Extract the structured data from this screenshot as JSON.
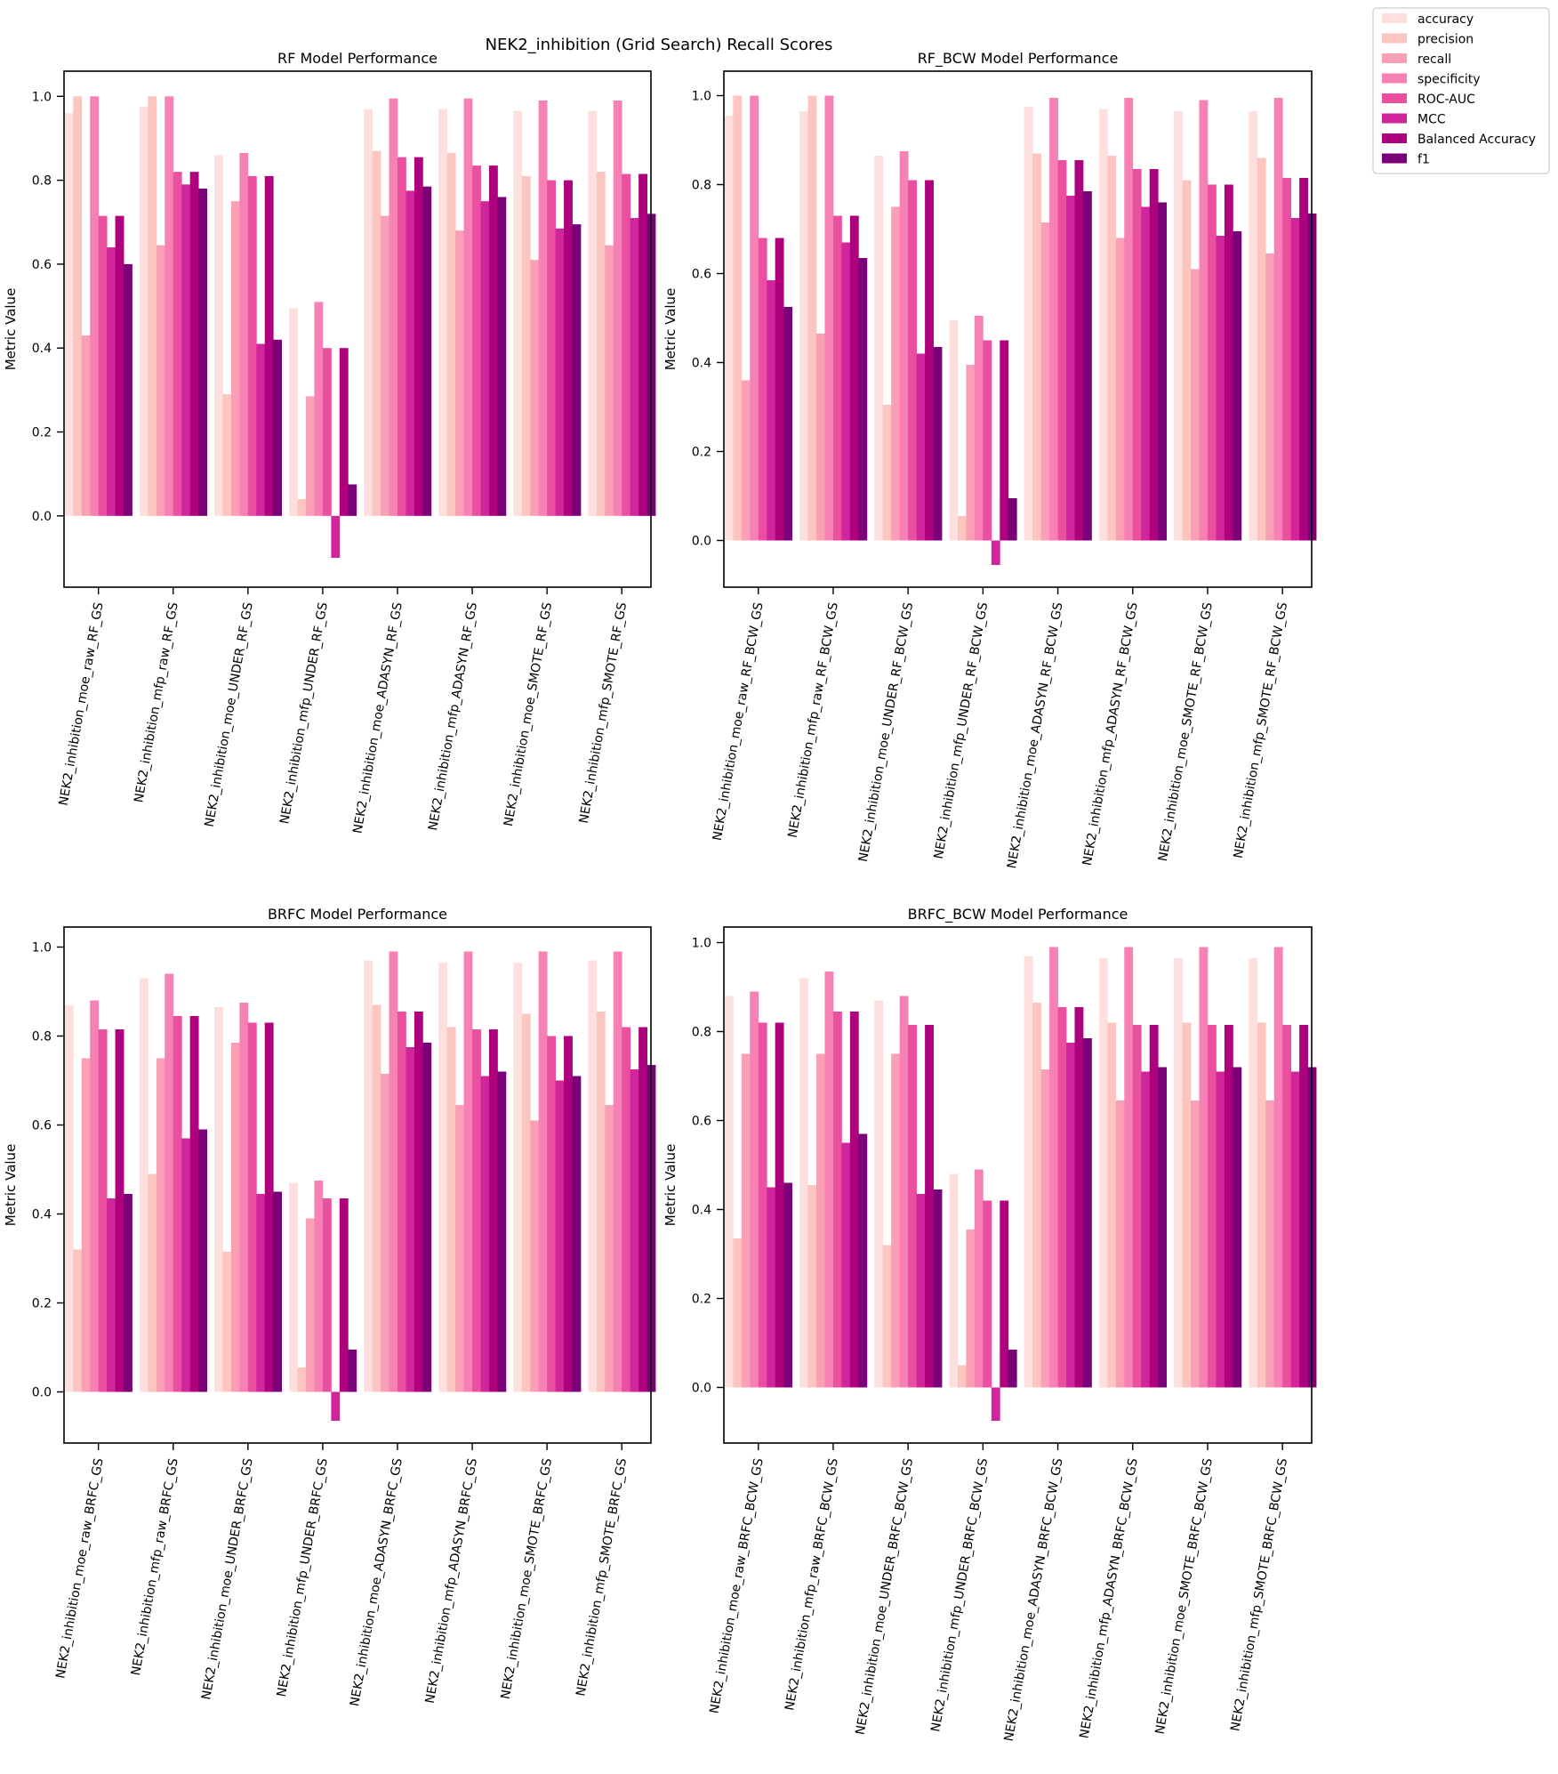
{
  "figure": {
    "suptitle": "NEK2_inhibition (Grid Search) Recall Scores",
    "legend_placement": "top-right, outside plots",
    "metrics": [
      "accuracy",
      "precision",
      "recall",
      "specificity",
      "ROC-AUC",
      "MCC",
      "Balanced Accuracy",
      "f1"
    ],
    "colors": [
      "#fde0dd",
      "#fcc5c0",
      "#fa9fb5",
      "#f781b4",
      "#ea4fa0",
      "#d1259b",
      "#ae017e",
      "#7a0177"
    ]
  },
  "chart_data": [
    {
      "type": "bar",
      "title": "RF Model Performance",
      "ylabel": "Metric Value",
      "ylim": [
        -0.17,
        1.06
      ],
      "yticks": [
        0.0,
        0.2,
        0.4,
        0.6,
        0.8,
        1.0
      ],
      "categories": [
        "NEK2_inhibition_moe_raw_RF_GS",
        "NEK2_inhibition_mfp_raw_RF_GS",
        "NEK2_inhibition_moe_UNDER_RF_GS",
        "NEK2_inhibition_mfp_UNDER_RF_GS",
        "NEK2_inhibition_moe_ADASYN_RF_GS",
        "NEK2_inhibition_mfp_ADASYN_RF_GS",
        "NEK2_inhibition_moe_SMOTE_RF_GS",
        "NEK2_inhibition_mfp_SMOTE_RF_GS"
      ],
      "series": [
        {
          "name": "accuracy",
          "values": [
            0.96,
            0.975,
            0.86,
            0.495,
            0.97,
            0.97,
            0.965,
            0.965
          ]
        },
        {
          "name": "precision",
          "values": [
            1.0,
            1.0,
            0.29,
            0.04,
            0.87,
            0.865,
            0.81,
            0.82
          ]
        },
        {
          "name": "recall",
          "values": [
            0.43,
            0.645,
            0.75,
            0.285,
            0.715,
            0.68,
            0.61,
            0.645
          ]
        },
        {
          "name": "specificity",
          "values": [
            1.0,
            1.0,
            0.865,
            0.51,
            0.995,
            0.995,
            0.99,
            0.99
          ]
        },
        {
          "name": "ROC-AUC",
          "values": [
            0.715,
            0.82,
            0.81,
            0.4,
            0.855,
            0.835,
            0.8,
            0.815
          ]
        },
        {
          "name": "MCC",
          "values": [
            0.64,
            0.79,
            0.41,
            -0.1,
            0.775,
            0.75,
            0.685,
            0.71
          ]
        },
        {
          "name": "Balanced Accuracy",
          "values": [
            0.715,
            0.82,
            0.81,
            0.4,
            0.855,
            0.835,
            0.8,
            0.815
          ]
        },
        {
          "name": "f1",
          "values": [
            0.6,
            0.78,
            0.42,
            0.075,
            0.785,
            0.76,
            0.695,
            0.72
          ]
        }
      ]
    },
    {
      "type": "bar",
      "title": "RF_BCW Model Performance",
      "ylabel": "Metric Value",
      "ylim": [
        -0.105,
        1.055
      ],
      "yticks": [
        0.0,
        0.2,
        0.4,
        0.6,
        0.8,
        1.0
      ],
      "categories": [
        "NEK2_inhibition_moe_raw_RF_BCW_GS",
        "NEK2_inhibition_mfp_raw_RF_BCW_GS",
        "NEK2_inhibition_moe_UNDER_RF_BCW_GS",
        "NEK2_inhibition_mfp_UNDER_RF_BCW_GS",
        "NEK2_inhibition_moe_ADASYN_RF_BCW_GS",
        "NEK2_inhibition_mfp_ADASYN_RF_BCW_GS",
        "NEK2_inhibition_moe_SMOTE_RF_BCW_GS",
        "NEK2_inhibition_mfp_SMOTE_RF_BCW_GS"
      ],
      "series": [
        {
          "name": "accuracy",
          "values": [
            0.955,
            0.965,
            0.865,
            0.495,
            0.975,
            0.97,
            0.965,
            0.965
          ]
        },
        {
          "name": "precision",
          "values": [
            1.0,
            1.0,
            0.305,
            0.055,
            0.87,
            0.865,
            0.81,
            0.86
          ]
        },
        {
          "name": "recall",
          "values": [
            0.36,
            0.465,
            0.75,
            0.395,
            0.715,
            0.68,
            0.61,
            0.645
          ]
        },
        {
          "name": "specificity",
          "values": [
            1.0,
            1.0,
            0.875,
            0.505,
            0.995,
            0.995,
            0.99,
            0.995
          ]
        },
        {
          "name": "ROC-AUC",
          "values": [
            0.68,
            0.73,
            0.81,
            0.45,
            0.855,
            0.835,
            0.8,
            0.815
          ]
        },
        {
          "name": "MCC",
          "values": [
            0.585,
            0.67,
            0.42,
            -0.055,
            0.775,
            0.75,
            0.685,
            0.725
          ]
        },
        {
          "name": "Balanced Accuracy",
          "values": [
            0.68,
            0.73,
            0.81,
            0.45,
            0.855,
            0.835,
            0.8,
            0.815
          ]
        },
        {
          "name": "f1",
          "values": [
            0.525,
            0.635,
            0.435,
            0.095,
            0.785,
            0.76,
            0.695,
            0.735
          ]
        }
      ]
    },
    {
      "type": "bar",
      "title": "BRFC Model Performance",
      "ylabel": "Metric Value",
      "ylim": [
        -0.115,
        1.045
      ],
      "yticks": [
        0.0,
        0.2,
        0.4,
        0.6,
        0.8,
        1.0
      ],
      "categories": [
        "NEK2_inhibition_moe_raw_BRFC_GS",
        "NEK2_inhibition_mfp_raw_BRFC_GS",
        "NEK2_inhibition_moe_UNDER_BRFC_GS",
        "NEK2_inhibition_mfp_UNDER_BRFC_GS",
        "NEK2_inhibition_moe_ADASYN_BRFC_GS",
        "NEK2_inhibition_mfp_ADASYN_BRFC_GS",
        "NEK2_inhibition_moe_SMOTE_BRFC_GS",
        "NEK2_inhibition_mfp_SMOTE_BRFC_GS"
      ],
      "series": [
        {
          "name": "accuracy",
          "values": [
            0.87,
            0.93,
            0.865,
            0.47,
            0.97,
            0.965,
            0.965,
            0.97
          ]
        },
        {
          "name": "precision",
          "values": [
            0.32,
            0.49,
            0.315,
            0.055,
            0.87,
            0.82,
            0.85,
            0.855
          ]
        },
        {
          "name": "recall",
          "values": [
            0.75,
            0.75,
            0.785,
            0.39,
            0.715,
            0.645,
            0.61,
            0.645
          ]
        },
        {
          "name": "specificity",
          "values": [
            0.88,
            0.94,
            0.875,
            0.475,
            0.99,
            0.99,
            0.99,
            0.99
          ]
        },
        {
          "name": "ROC-AUC",
          "values": [
            0.815,
            0.845,
            0.83,
            0.435,
            0.855,
            0.815,
            0.8,
            0.82
          ]
        },
        {
          "name": "MCC",
          "values": [
            0.435,
            0.57,
            0.445,
            -0.065,
            0.775,
            0.71,
            0.7,
            0.725
          ]
        },
        {
          "name": "Balanced Accuracy",
          "values": [
            0.815,
            0.845,
            0.83,
            0.435,
            0.855,
            0.815,
            0.8,
            0.82
          ]
        },
        {
          "name": "f1",
          "values": [
            0.445,
            0.59,
            0.45,
            0.095,
            0.785,
            0.72,
            0.71,
            0.735
          ]
        }
      ]
    },
    {
      "type": "bar",
      "title": "BRFC_BCW Model Performance",
      "ylabel": "Metric Value",
      "ylim": [
        -0.125,
        1.035
      ],
      "yticks": [
        0.0,
        0.2,
        0.4,
        0.6,
        0.8,
        1.0
      ],
      "categories": [
        "NEK2_inhibition_moe_raw_BRFC_BCW_GS",
        "NEK2_inhibition_mfp_raw_BRFC_BCW_GS",
        "NEK2_inhibition_moe_UNDER_BRFC_BCW_GS",
        "NEK2_inhibition_mfp_UNDER_BRFC_BCW_GS",
        "NEK2_inhibition_moe_ADASYN_BRFC_BCW_GS",
        "NEK2_inhibition_mfp_ADASYN_BRFC_BCW_GS",
        "NEK2_inhibition_moe_SMOTE_BRFC_BCW_GS",
        "NEK2_inhibition_mfp_SMOTE_BRFC_BCW_GS"
      ],
      "series": [
        {
          "name": "accuracy",
          "values": [
            0.88,
            0.92,
            0.87,
            0.48,
            0.97,
            0.965,
            0.965,
            0.965
          ]
        },
        {
          "name": "precision",
          "values": [
            0.335,
            0.455,
            0.32,
            0.05,
            0.865,
            0.82,
            0.82,
            0.82
          ]
        },
        {
          "name": "recall",
          "values": [
            0.75,
            0.75,
            0.75,
            0.355,
            0.715,
            0.645,
            0.645,
            0.645
          ]
        },
        {
          "name": "specificity",
          "values": [
            0.89,
            0.935,
            0.88,
            0.49,
            0.99,
            0.99,
            0.99,
            0.99
          ]
        },
        {
          "name": "ROC-AUC",
          "values": [
            0.82,
            0.845,
            0.815,
            0.42,
            0.855,
            0.815,
            0.815,
            0.815
          ]
        },
        {
          "name": "MCC",
          "values": [
            0.45,
            0.55,
            0.435,
            -0.075,
            0.775,
            0.71,
            0.71,
            0.71
          ]
        },
        {
          "name": "Balanced Accuracy",
          "values": [
            0.82,
            0.845,
            0.815,
            0.42,
            0.855,
            0.815,
            0.815,
            0.815
          ]
        },
        {
          "name": "f1",
          "values": [
            0.46,
            0.57,
            0.445,
            0.085,
            0.785,
            0.72,
            0.72,
            0.72
          ]
        }
      ]
    }
  ]
}
